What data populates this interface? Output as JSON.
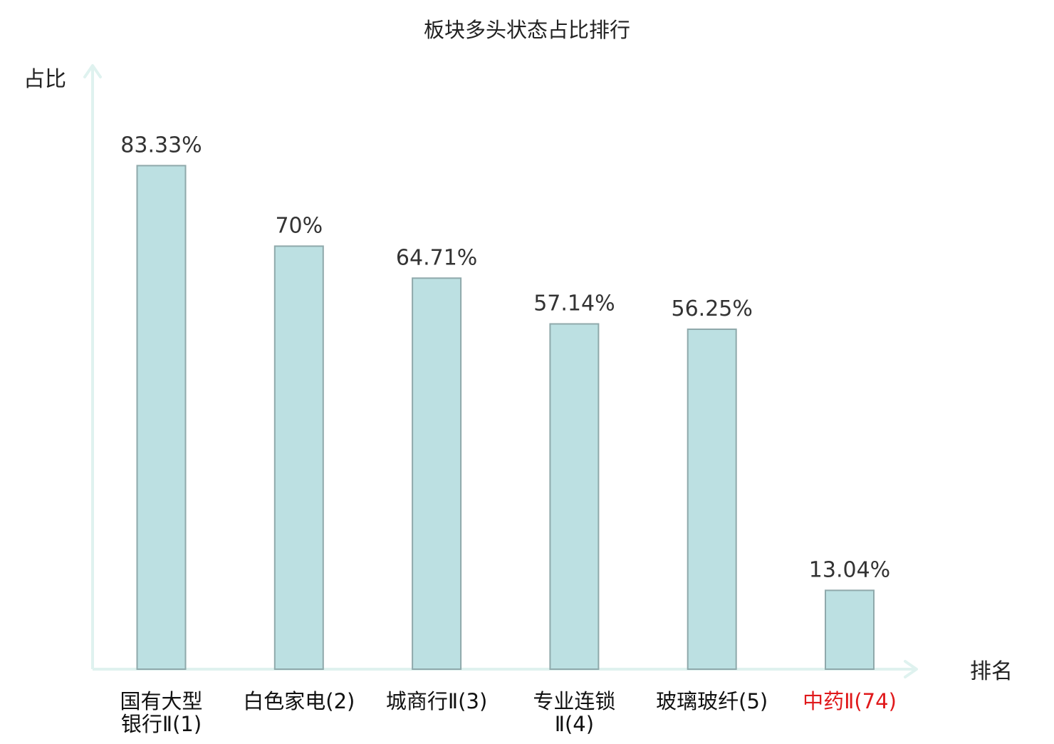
{
  "chart_data": {
    "type": "bar",
    "title": "板块多头状态占比排行",
    "ylabel": "占比",
    "xlabel": "排名",
    "ylim": [
      0,
      100
    ],
    "grid": false,
    "categories": [
      [
        "国有大型",
        "银行Ⅱ(1)"
      ],
      [
        "白色家电(2)"
      ],
      [
        "城商行Ⅱ(3)"
      ],
      [
        "专业连锁",
        "Ⅱ(4)"
      ],
      [
        "玻璃玻纤(5)"
      ],
      [
        "中药Ⅱ(74)"
      ]
    ],
    "values": [
      83.33,
      70,
      64.71,
      57.14,
      56.25,
      13.04
    ],
    "value_labels": [
      "83.33%",
      "70%",
      "64.71%",
      "57.14%",
      "56.25%",
      "13.04%"
    ],
    "highlight_index": 5,
    "colors": {
      "bar_fill": "#bce0e2",
      "bar_stroke": "#8fa9ab",
      "axis": "#dff2ef",
      "text": "#333333",
      "highlight_text": "#e0191b"
    }
  }
}
